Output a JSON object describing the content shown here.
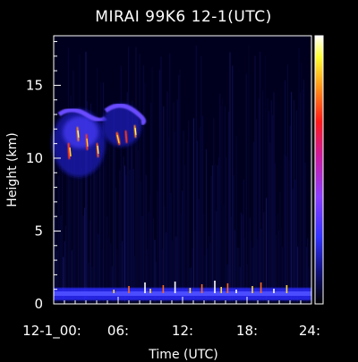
{
  "chart_data": {
    "type": "heatmap",
    "title": "MIRAI 99K6 12-1(UTC)",
    "ylabel": "Height (km)",
    "xlabel": "Time (UTC)",
    "xlim": [
      0,
      24
    ],
    "ylim": [
      0,
      18.4
    ],
    "x_ticks": [
      {
        "value": 0,
        "label": "12-1_00:"
      },
      {
        "value": 6,
        "label": "06:"
      },
      {
        "value": 12,
        "label": "12:"
      },
      {
        "value": 18,
        "label": "18:"
      },
      {
        "value": 24,
        "label": "24:"
      }
    ],
    "y_ticks": [
      {
        "value": 0,
        "label": "0"
      },
      {
        "value": 5,
        "label": "5"
      },
      {
        "value": 10,
        "label": "10"
      },
      {
        "value": 15,
        "label": "15"
      }
    ],
    "colorbar": [
      "#000000",
      "#10107a",
      "#3333ff",
      "#8c3cff",
      "#cc1aa0",
      "#ff1a1a",
      "#ff8c1a",
      "#ffff33",
      "#ffffff"
    ],
    "features": [
      {
        "name": "",
        "x_range": [
          0,
          24
        ],
        "y_range": [
          0,
          0.6
        ],
        "intensity": "high"
      },
      {
        "name": "",
        "x_range": [
          0.2,
          4.8
        ],
        "y_range": [
          9.5,
          13.5
        ],
        "intensity": "high"
      },
      {
        "name": "",
        "x_range": [
          5.0,
          8.0
        ],
        "y_range": [
          10.5,
          13.5
        ],
        "intensity": "high"
      }
    ]
  }
}
